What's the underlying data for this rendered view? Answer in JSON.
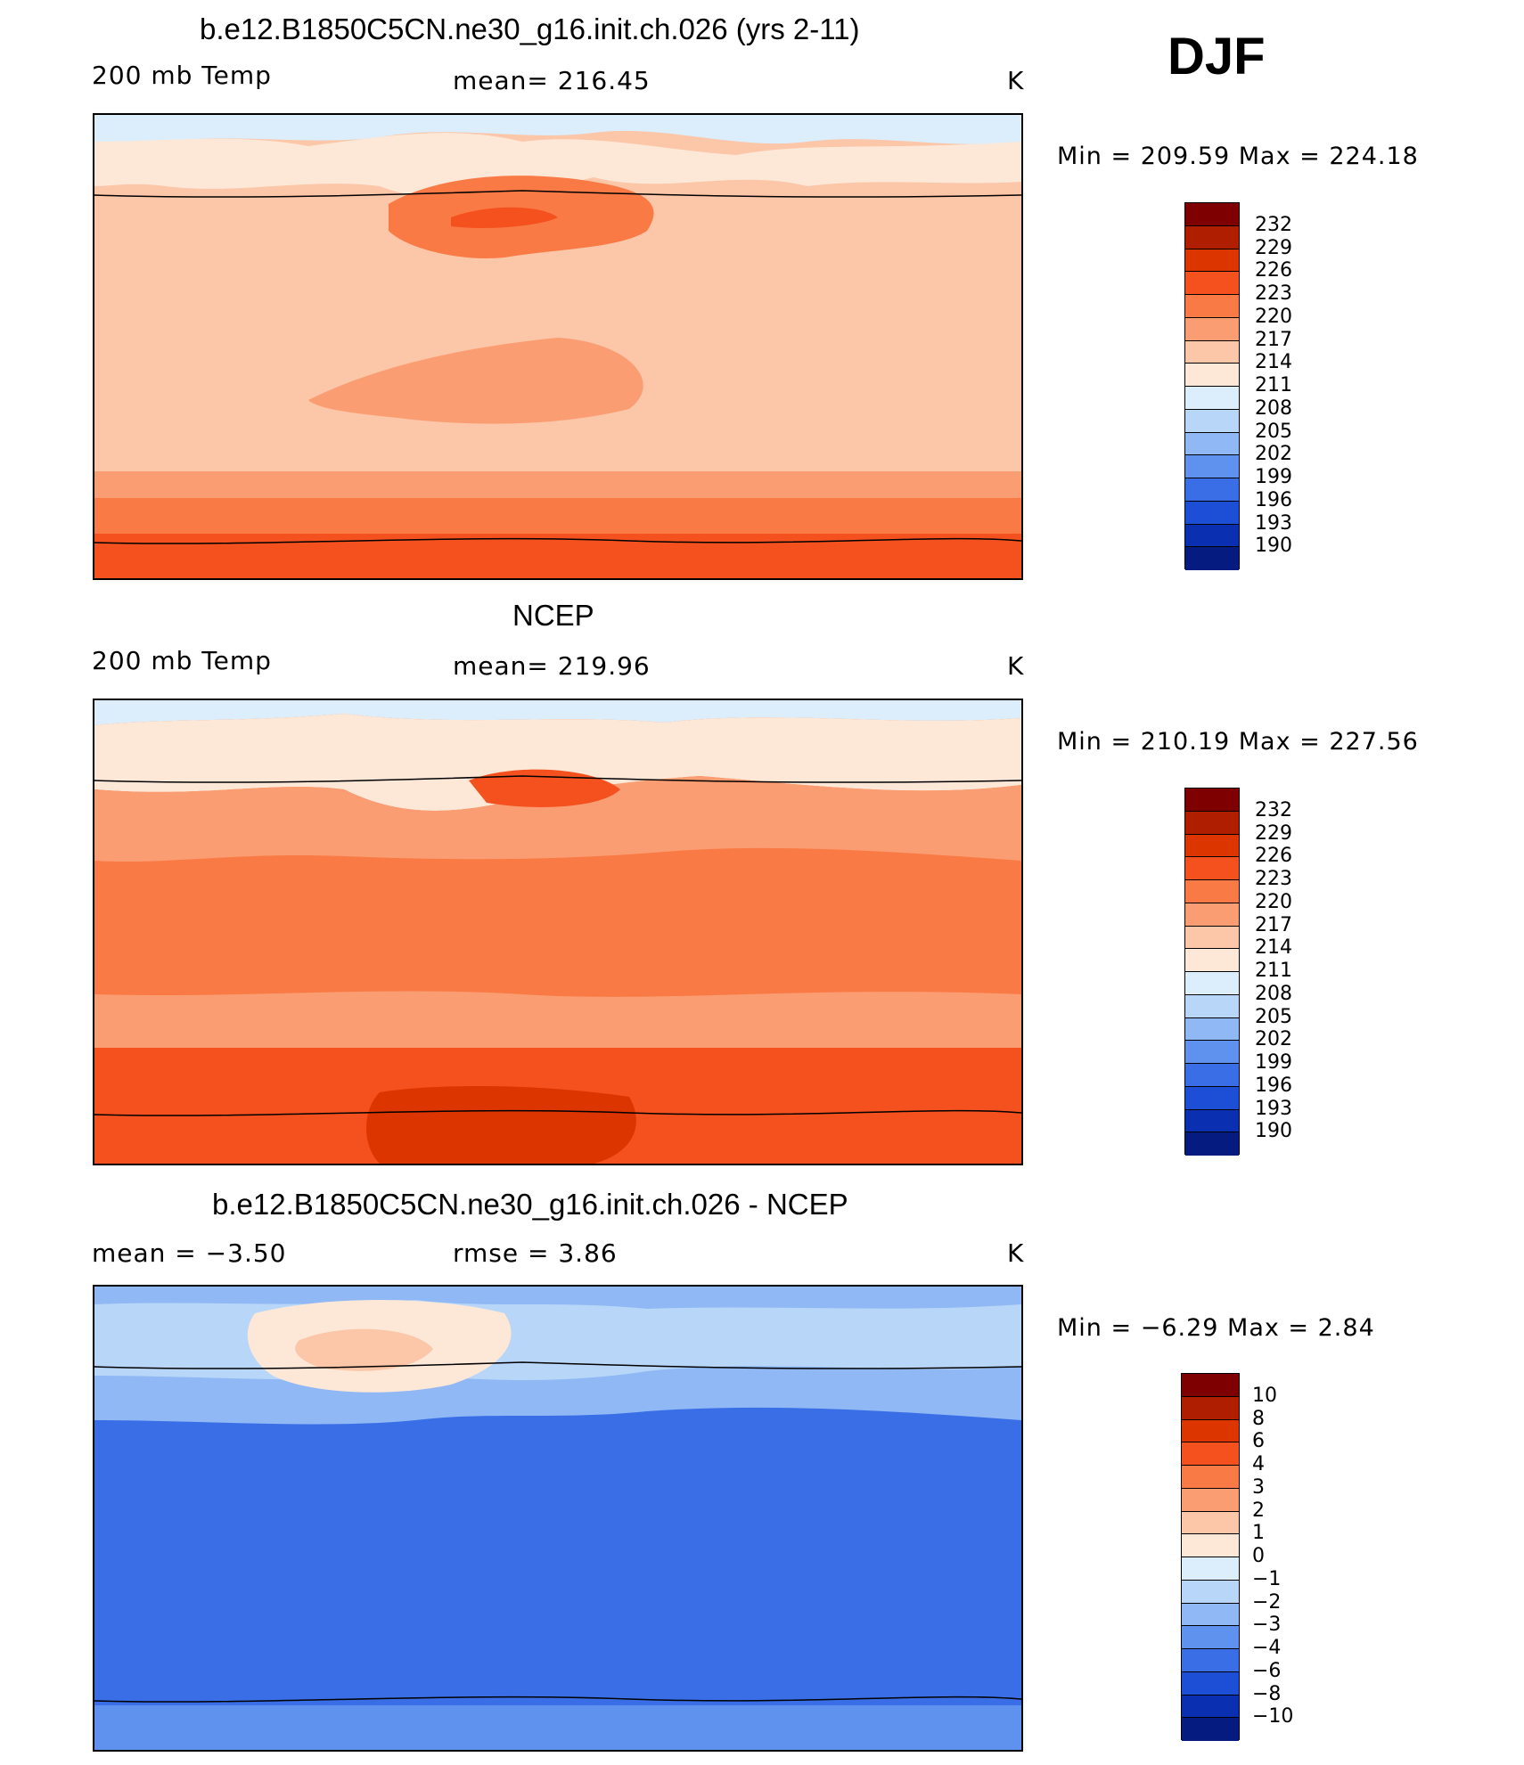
{
  "season": "DJF",
  "panels": [
    {
      "title": "b.e12.B1850C5CN.ne30_g16.init.ch.026 (yrs 2-11)",
      "left_label": "200 mb Temp",
      "center_label": "mean=  216.45",
      "units": "K",
      "minmax": "Min  =  209.59  Max  =  224.18",
      "field": "model",
      "colorbar": {
        "labels": [
          "232",
          "229",
          "226",
          "223",
          "220",
          "217",
          "214",
          "211",
          "208",
          "205",
          "202",
          "199",
          "196",
          "193",
          "190"
        ],
        "colors": [
          "#7f0000",
          "#b01e00",
          "#dc3500",
          "#f4511e",
          "#fa7a45",
          "#fb9d72",
          "#fcc6a8",
          "#fde8d8",
          "#dceefb",
          "#b8d6f8",
          "#8fb8f4",
          "#5f92ef",
          "#3a6ee6",
          "#1d4fd6",
          "#0b2fb1",
          "#051b80"
        ]
      }
    },
    {
      "title": "NCEP",
      "left_label": "200 mb Temp",
      "center_label": "mean=  219.96",
      "units": "K",
      "minmax": "Min  =  210.19  Max  =  227.56",
      "field": "obs",
      "colorbar": {
        "labels": [
          "232",
          "229",
          "226",
          "223",
          "220",
          "217",
          "214",
          "211",
          "208",
          "205",
          "202",
          "199",
          "196",
          "193",
          "190"
        ],
        "colors": [
          "#7f0000",
          "#b01e00",
          "#dc3500",
          "#f4511e",
          "#fa7a45",
          "#fb9d72",
          "#fcc6a8",
          "#fde8d8",
          "#dceefb",
          "#b8d6f8",
          "#8fb8f4",
          "#5f92ef",
          "#3a6ee6",
          "#1d4fd6",
          "#0b2fb1",
          "#051b80"
        ]
      }
    },
    {
      "title": "b.e12.B1850C5CN.ne30_g16.init.ch.026 - NCEP",
      "left_label": "mean  =     −3.50",
      "center_label": "rmse  =      3.86",
      "units": "K",
      "minmax": "Min  =    −6.29  Max  =      2.84",
      "field": "diff",
      "colorbar": {
        "labels": [
          "10",
          "8",
          "6",
          "4",
          "3",
          "2",
          "1",
          "0",
          "−1",
          "−2",
          "−3",
          "−4",
          "−6",
          "−8",
          "−10"
        ],
        "colors": [
          "#7f0000",
          "#b01e00",
          "#dc3500",
          "#f4511e",
          "#fa7a45",
          "#fb9d72",
          "#fcc6a8",
          "#fde8d8",
          "#dceefb",
          "#b8d6f8",
          "#8fb8f4",
          "#5f92ef",
          "#3a6ee6",
          "#1d4fd6",
          "#0b2fb1",
          "#051b80"
        ]
      }
    }
  ]
}
